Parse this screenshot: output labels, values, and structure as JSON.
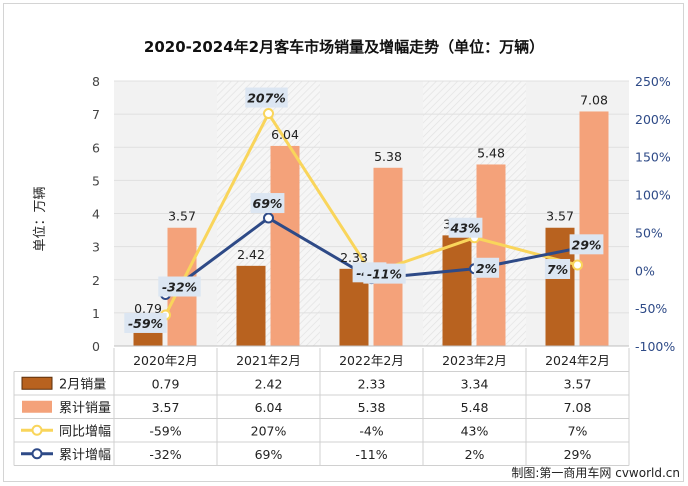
{
  "chart_data": {
    "type": "bar",
    "title": "2020-2024年2月客车市场销量及增幅走势（单位：万辆）",
    "ylabel": "单位：万辆",
    "categories": [
      "2020年2月",
      "2021年2月",
      "2022年2月",
      "2023年2月",
      "2024年2月"
    ],
    "ylim": [
      0,
      8
    ],
    "yticks": [
      "0",
      "1",
      "2",
      "3",
      "4",
      "5",
      "6",
      "7",
      "8"
    ],
    "y2lim": [
      -100,
      250
    ],
    "y2ticks": [
      "-100%",
      "-50%",
      "0%",
      "50%",
      "100%",
      "150%",
      "200%",
      "250%"
    ],
    "series": [
      {
        "name": "2月销量",
        "type": "bar",
        "axis": "left",
        "color": "#b8621f",
        "values": [
          0.79,
          2.42,
          2.33,
          3.34,
          3.57
        ],
        "labels": [
          "0.79",
          "2.42",
          "2.33",
          "3.34",
          "3.57"
        ]
      },
      {
        "name": "累计销量",
        "type": "bar",
        "axis": "left",
        "color": "#f4a27a",
        "values": [
          3.57,
          6.04,
          5.38,
          5.48,
          7.08
        ],
        "labels": [
          "3.57",
          "6.04",
          "5.38",
          "5.48",
          "7.08"
        ]
      },
      {
        "name": "同比增幅",
        "type": "line",
        "axis": "right",
        "color": "#f9d55b",
        "values": [
          -59,
          207,
          -4,
          43,
          7
        ],
        "labels": [
          "-59%",
          "207%",
          "-4%",
          "43%",
          "7%"
        ]
      },
      {
        "name": "累计增幅",
        "type": "line",
        "axis": "right",
        "color": "#2e4a87",
        "values": [
          -32,
          69,
          -11,
          2,
          29
        ],
        "labels": [
          "-32%",
          "69%",
          "-11%",
          "2%",
          "29%"
        ]
      }
    ],
    "source_note": "制图:第一商用车网 cvworld.cn"
  },
  "colors": {
    "axis_right_text": "#2e4a87",
    "plot_bg": "#f2f2f2",
    "label_box": "#dce6f2"
  }
}
